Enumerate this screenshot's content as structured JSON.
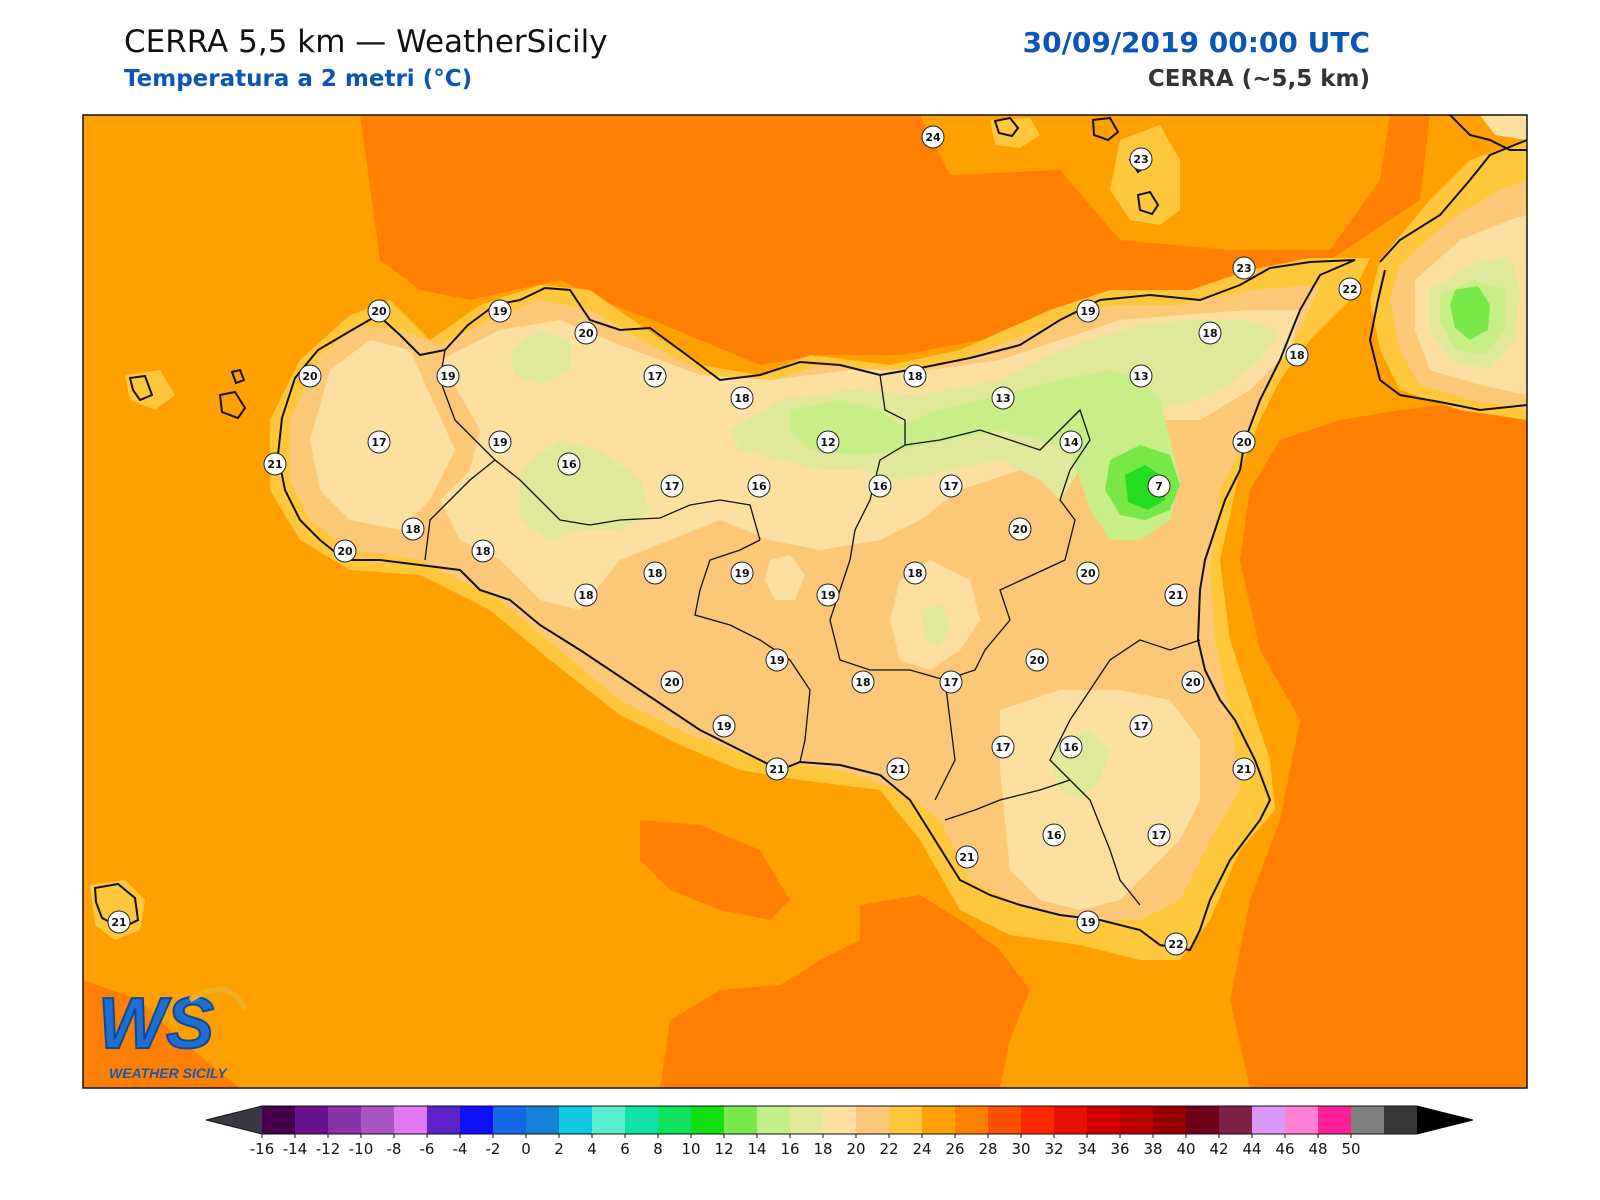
{
  "header": {
    "title": "CERRA 5,5 km — WeatherSicily",
    "subtitle": "Temperatura a 2 metri (°C)",
    "datetime": "30/09/2019 00:00 UTC",
    "model": "CERRA (~5,5 km)"
  },
  "colors": {
    "sea_22_24": "#ffa000",
    "sea_24_26": "#ff8000",
    "band_20_22": "#ffc83c",
    "band_18_20": "#fcc878",
    "band_16_18": "#fde0a0",
    "band_14_16": "#e0e89a",
    "band_12_14": "#c8ee88",
    "band_10_12": "#78e848",
    "band_8_10": "#22dd22",
    "coastline": "#111111"
  },
  "stations": [
    {
      "value": "24"
    },
    {
      "value": "23"
    },
    {
      "value": "23"
    },
    {
      "value": "22"
    },
    {
      "value": "20"
    },
    {
      "value": "19"
    },
    {
      "value": "20"
    },
    {
      "value": "20"
    },
    {
      "value": "19"
    },
    {
      "value": "17"
    },
    {
      "value": "18"
    },
    {
      "value": "18"
    },
    {
      "value": "19"
    },
    {
      "value": "13"
    },
    {
      "value": "13"
    },
    {
      "value": "18"
    },
    {
      "value": "18"
    },
    {
      "value": "17"
    },
    {
      "value": "21"
    },
    {
      "value": "19"
    },
    {
      "value": "16"
    },
    {
      "value": "17"
    },
    {
      "value": "16"
    },
    {
      "value": "12"
    },
    {
      "value": "16"
    },
    {
      "value": "17"
    },
    {
      "value": "14"
    },
    {
      "value": "20"
    },
    {
      "value": "7"
    },
    {
      "value": "18"
    },
    {
      "value": "20"
    },
    {
      "value": "18"
    },
    {
      "value": "18"
    },
    {
      "value": "18"
    },
    {
      "value": "19"
    },
    {
      "value": "19"
    },
    {
      "value": "18"
    },
    {
      "value": "20"
    },
    {
      "value": "20"
    },
    {
      "value": "21"
    },
    {
      "value": "19"
    },
    {
      "value": "20"
    },
    {
      "value": "20"
    },
    {
      "value": "18"
    },
    {
      "value": "17"
    },
    {
      "value": "20"
    },
    {
      "value": "19"
    },
    {
      "value": "17"
    },
    {
      "value": "16"
    },
    {
      "value": "17"
    },
    {
      "value": "21"
    },
    {
      "value": "21"
    },
    {
      "value": "21"
    },
    {
      "value": "16"
    },
    {
      "value": "17"
    },
    {
      "value": "21"
    },
    {
      "value": "19"
    },
    {
      "value": "22"
    },
    {
      "value": "21"
    }
  ],
  "colorbar": {
    "min_arrow_color": "#3a3a44",
    "max_arrow_color": "#000000",
    "colors": [
      "#44004a",
      "#6a1090",
      "#8a30a8",
      "#a855c0",
      "#e078f0",
      "#5c22c8",
      "#1010f8",
      "#1468e8",
      "#1480d8",
      "#10c8e0",
      "#5aeed0",
      "#10e0a8",
      "#10e060",
      "#10e010",
      "#78e848",
      "#c0ee88",
      "#e0e89a",
      "#fde0a0",
      "#fcc878",
      "#ffc83c",
      "#ffa000",
      "#ff8000",
      "#ff5000",
      "#ff2800",
      "#e81000",
      "#d00000",
      "#b80000",
      "#980000",
      "#700018",
      "#802048",
      "#d898f8",
      "#ff80d0",
      "#ff2098",
      "#808080",
      "#383838"
    ],
    "tick_labels": [
      "-16",
      "-14",
      "-12",
      "-10",
      "-8",
      "-6",
      "-4",
      "-2",
      "0",
      "2",
      "4",
      "6",
      "8",
      "10",
      "12",
      "14",
      "16",
      "18",
      "20",
      "22",
      "24",
      "26",
      "28",
      "30",
      "32",
      "34",
      "36",
      "38",
      "40",
      "42",
      "44",
      "46",
      "48",
      "50"
    ]
  },
  "logo": {
    "letters": "WS",
    "wordmark": "WEATHER SICILY"
  }
}
